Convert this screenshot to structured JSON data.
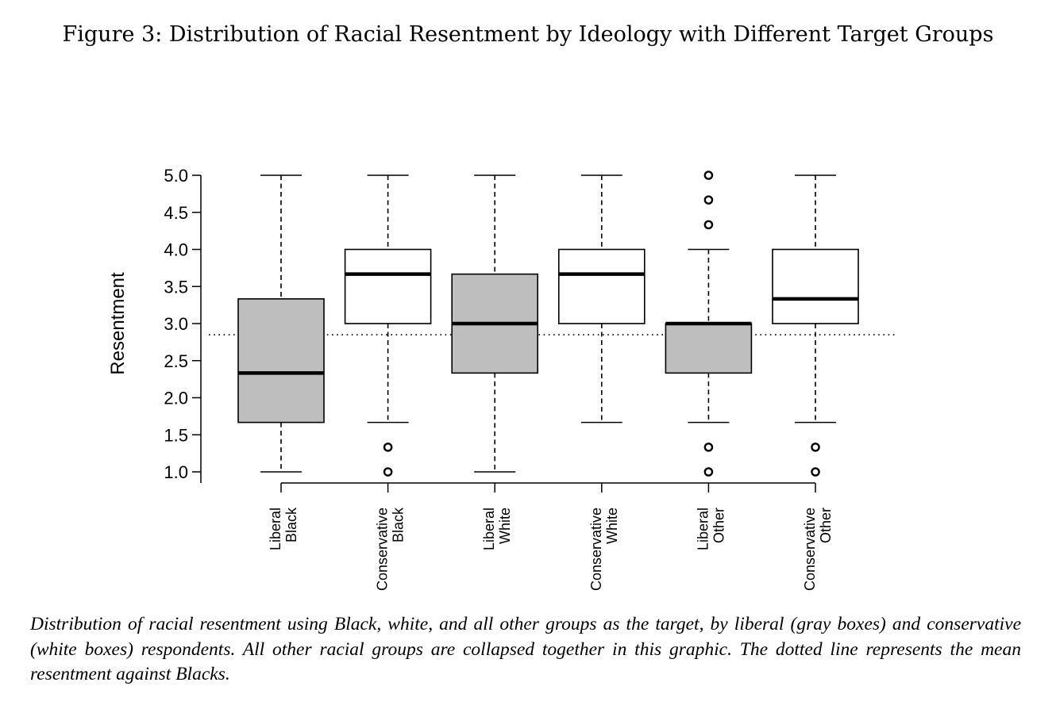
{
  "figure": {
    "title": "Figure 3: Distribution of Racial Resentment by Ideology with Different Target Groups",
    "caption": "Distribution of racial resentment using Black, white, and all other groups as the target, by liberal (gray boxes) and conservative (white boxes) respondents. All other racial groups are collapsed together in this graphic. The dotted line represents the mean resentment against Blacks."
  },
  "chart_data": {
    "type": "box",
    "title": "",
    "xlabel": "",
    "ylabel": "Resentment",
    "ylim": [
      1.0,
      5.0
    ],
    "yticks": [
      "1.0",
      "1.5",
      "2.0",
      "2.5",
      "3.0",
      "3.5",
      "4.0",
      "4.5",
      "5.0"
    ],
    "reference_line": {
      "y": 2.85,
      "style": "dotted"
    },
    "colors": {
      "liberal": "#bebebe",
      "conservative": "#ffffff"
    },
    "boxes": [
      {
        "label": [
          "Liberal",
          "Black"
        ],
        "group": "liberal",
        "whisker_low": 1.0,
        "q1": 1.667,
        "median": 2.333,
        "q3": 3.333,
        "whisker_high": 5.0,
        "outliers": []
      },
      {
        "label": [
          "Conservative",
          "Black"
        ],
        "group": "conservative",
        "whisker_low": 1.667,
        "q1": 3.0,
        "median": 3.667,
        "q3": 4.0,
        "whisker_high": 5.0,
        "outliers": [
          1.0,
          1.333
        ]
      },
      {
        "label": [
          "Liberal",
          "White"
        ],
        "group": "liberal",
        "whisker_low": 1.0,
        "q1": 2.333,
        "median": 3.0,
        "q3": 3.667,
        "whisker_high": 5.0,
        "outliers": []
      },
      {
        "label": [
          "Conservative",
          "White"
        ],
        "group": "conservative",
        "whisker_low": 1.667,
        "q1": 3.0,
        "median": 3.667,
        "q3": 4.0,
        "whisker_high": 5.0,
        "outliers": []
      },
      {
        "label": [
          "Liberal",
          "Other"
        ],
        "group": "liberal",
        "whisker_low": 1.667,
        "q1": 2.333,
        "median": 3.0,
        "q3": 3.0,
        "whisker_high": 4.0,
        "outliers": [
          1.0,
          1.333,
          4.333,
          4.667,
          5.0
        ]
      },
      {
        "label": [
          "Conservative",
          "Other"
        ],
        "group": "conservative",
        "whisker_low": 1.667,
        "q1": 3.0,
        "median": 3.333,
        "q3": 4.0,
        "whisker_high": 5.0,
        "outliers": [
          1.0,
          1.333
        ]
      }
    ]
  }
}
